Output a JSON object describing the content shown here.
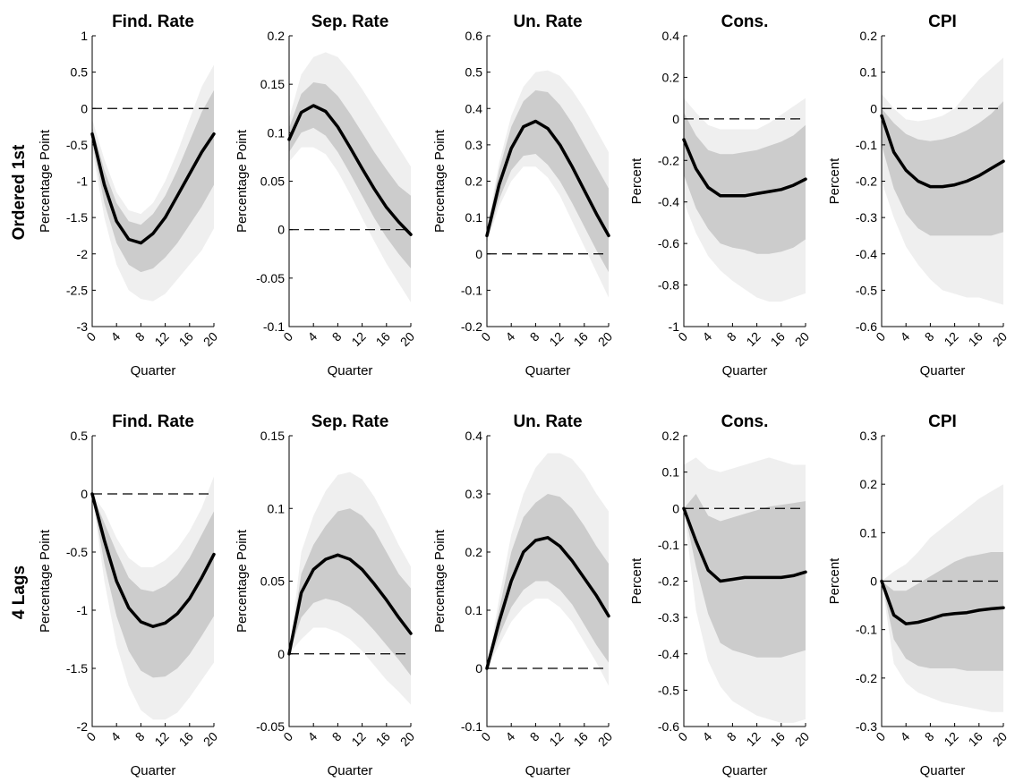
{
  "row_labels": [
    "Ordered 1st",
    "4 Lags"
  ],
  "chart_data": [
    {
      "type": "line",
      "row": 0,
      "col": 0,
      "title": "Find. Rate",
      "xlabel": "Quarter",
      "ylabel": "Percentage Point",
      "xlim": [
        0,
        20
      ],
      "ylim": [
        -3,
        1
      ],
      "yticks": [
        -3,
        -2.5,
        -2,
        -1.5,
        -1,
        -0.5,
        0,
        0.5,
        1
      ],
      "xticks": [
        0,
        4,
        8,
        12,
        16,
        20
      ],
      "zero_line": 0,
      "x": [
        0,
        2,
        4,
        6,
        8,
        10,
        12,
        14,
        16,
        18,
        20
      ],
      "median": [
        -0.35,
        -1.05,
        -1.55,
        -1.8,
        -1.85,
        -1.72,
        -1.5,
        -1.2,
        -0.9,
        -0.6,
        -0.35
      ],
      "band68_lower": [
        -0.45,
        -1.3,
        -1.85,
        -2.15,
        -2.25,
        -2.2,
        -2.05,
        -1.85,
        -1.6,
        -1.35,
        -1.05
      ],
      "band68_upper": [
        -0.25,
        -0.85,
        -1.3,
        -1.55,
        -1.6,
        -1.45,
        -1.2,
        -0.85,
        -0.45,
        -0.05,
        0.25
      ],
      "band90_lower": [
        -0.55,
        -1.5,
        -2.15,
        -2.5,
        -2.62,
        -2.65,
        -2.55,
        -2.35,
        -2.15,
        -1.95,
        -1.65
      ],
      "band90_upper": [
        -0.15,
        -0.7,
        -1.15,
        -1.4,
        -1.45,
        -1.3,
        -1.0,
        -0.6,
        -0.15,
        0.3,
        0.6
      ]
    },
    {
      "type": "line",
      "row": 0,
      "col": 1,
      "title": "Sep. Rate",
      "xlabel": "Quarter",
      "ylabel": "Percentage Point",
      "xlim": [
        0,
        20
      ],
      "ylim": [
        -0.1,
        0.2
      ],
      "yticks": [
        -0.1,
        -0.05,
        0,
        0.05,
        0.1,
        0.15,
        0.2
      ],
      "xticks": [
        0,
        4,
        8,
        12,
        16,
        20
      ],
      "zero_line": 0,
      "x": [
        0,
        2,
        4,
        6,
        8,
        10,
        12,
        14,
        16,
        18,
        20
      ],
      "median": [
        0.093,
        0.121,
        0.128,
        0.122,
        0.106,
        0.085,
        0.063,
        0.042,
        0.023,
        0.008,
        -0.005
      ],
      "band68_lower": [
        0.08,
        0.1,
        0.105,
        0.097,
        0.08,
        0.058,
        0.035,
        0.012,
        -0.008,
        -0.025,
        -0.04
      ],
      "band68_upper": [
        0.105,
        0.14,
        0.152,
        0.15,
        0.138,
        0.12,
        0.1,
        0.08,
        0.062,
        0.045,
        0.035
      ],
      "band90_lower": [
        0.07,
        0.085,
        0.085,
        0.078,
        0.06,
        0.037,
        0.012,
        -0.012,
        -0.035,
        -0.055,
        -0.075
      ],
      "band90_upper": [
        0.115,
        0.16,
        0.178,
        0.183,
        0.178,
        0.163,
        0.145,
        0.125,
        0.105,
        0.085,
        0.065
      ]
    },
    {
      "type": "line",
      "row": 0,
      "col": 2,
      "title": "Un. Rate",
      "xlabel": "Quarter",
      "ylabel": "Percentage Point",
      "xlim": [
        0,
        20
      ],
      "ylim": [
        -0.2,
        0.6
      ],
      "yticks": [
        -0.2,
        -0.1,
        0,
        0.1,
        0.2,
        0.3,
        0.4,
        0.5,
        0.6
      ],
      "xticks": [
        0,
        4,
        8,
        12,
        16,
        20
      ],
      "zero_line": 0,
      "x": [
        0,
        2,
        4,
        6,
        8,
        10,
        12,
        14,
        16,
        18,
        20
      ],
      "median": [
        0.05,
        0.19,
        0.29,
        0.35,
        0.365,
        0.345,
        0.3,
        0.24,
        0.175,
        0.11,
        0.05
      ],
      "band68_lower": [
        0.04,
        0.15,
        0.23,
        0.27,
        0.275,
        0.245,
        0.2,
        0.14,
        0.075,
        0.01,
        -0.05
      ],
      "band68_upper": [
        0.06,
        0.23,
        0.35,
        0.42,
        0.45,
        0.445,
        0.41,
        0.36,
        0.3,
        0.24,
        0.18
      ],
      "band90_lower": [
        0.03,
        0.13,
        0.2,
        0.24,
        0.24,
        0.21,
        0.16,
        0.09,
        0.02,
        -0.05,
        -0.12
      ],
      "band90_upper": [
        0.07,
        0.25,
        0.38,
        0.46,
        0.5,
        0.505,
        0.49,
        0.45,
        0.4,
        0.34,
        0.28
      ]
    },
    {
      "type": "line",
      "row": 0,
      "col": 3,
      "title": "Cons.",
      "xlabel": "Quarter",
      "ylabel": "Percent",
      "xlim": [
        0,
        20
      ],
      "ylim": [
        -1,
        0.4
      ],
      "yticks": [
        -1,
        -0.8,
        -0.6,
        -0.4,
        -0.2,
        0,
        0.2,
        0.4
      ],
      "xticks": [
        0,
        4,
        8,
        12,
        16,
        20
      ],
      "zero_line": 0,
      "x": [
        0,
        2,
        4,
        6,
        8,
        10,
        12,
        14,
        16,
        18,
        20
      ],
      "median": [
        -0.1,
        -0.24,
        -0.33,
        -0.37,
        -0.37,
        -0.37,
        -0.36,
        -0.35,
        -0.34,
        -0.32,
        -0.29
      ],
      "band68_lower": [
        -0.27,
        -0.43,
        -0.53,
        -0.6,
        -0.62,
        -0.63,
        -0.65,
        -0.65,
        -0.64,
        -0.62,
        -0.58
      ],
      "band68_upper": [
        0.03,
        -0.08,
        -0.15,
        -0.17,
        -0.17,
        -0.16,
        -0.15,
        -0.13,
        -0.11,
        -0.08,
        -0.03
      ],
      "band90_lower": [
        -0.4,
        -0.55,
        -0.66,
        -0.73,
        -0.78,
        -0.82,
        -0.86,
        -0.88,
        -0.88,
        -0.86,
        -0.84
      ],
      "band90_upper": [
        0.1,
        0.03,
        -0.03,
        -0.05,
        -0.05,
        -0.05,
        -0.05,
        -0.02,
        0.02,
        0.06,
        0.1
      ]
    },
    {
      "type": "line",
      "row": 0,
      "col": 4,
      "title": "CPI",
      "xlabel": "Quarter",
      "ylabel": "Percent",
      "xlim": [
        0,
        20
      ],
      "ylim": [
        -0.6,
        0.2
      ],
      "yticks": [
        -0.6,
        -0.5,
        -0.4,
        -0.3,
        -0.2,
        -0.1,
        0,
        0.1,
        0.2
      ],
      "xticks": [
        0,
        4,
        8,
        12,
        16,
        20
      ],
      "zero_line": 0,
      "x": [
        0,
        2,
        4,
        6,
        8,
        10,
        12,
        14,
        16,
        18,
        20
      ],
      "median": [
        -0.02,
        -0.12,
        -0.17,
        -0.2,
        -0.215,
        -0.215,
        -0.21,
        -0.2,
        -0.185,
        -0.165,
        -0.145
      ],
      "band68_lower": [
        -0.1,
        -0.22,
        -0.29,
        -0.33,
        -0.35,
        -0.35,
        -0.35,
        -0.35,
        -0.35,
        -0.35,
        -0.34
      ],
      "band68_upper": [
        0.0,
        -0.04,
        -0.07,
        -0.085,
        -0.09,
        -0.085,
        -0.075,
        -0.06,
        -0.04,
        -0.015,
        0.02
      ],
      "band90_lower": [
        -0.2,
        -0.3,
        -0.38,
        -0.43,
        -0.47,
        -0.5,
        -0.51,
        -0.52,
        -0.52,
        -0.53,
        -0.54
      ],
      "band90_upper": [
        0.04,
        0.0,
        -0.03,
        -0.035,
        -0.03,
        -0.02,
        0.0,
        0.04,
        0.08,
        0.11,
        0.14
      ]
    },
    {
      "type": "line",
      "row": 1,
      "col": 0,
      "title": "Find. Rate",
      "xlabel": "Quarter",
      "ylabel": "Percentage Point",
      "xlim": [
        0,
        20
      ],
      "ylim": [
        -2,
        0.5
      ],
      "yticks": [
        -2,
        -1.5,
        -1,
        -0.5,
        0,
        0.5
      ],
      "xticks": [
        0,
        4,
        8,
        12,
        16,
        20
      ],
      "zero_line": 0,
      "x": [
        0,
        2,
        4,
        6,
        8,
        10,
        12,
        14,
        16,
        18,
        20
      ],
      "median": [
        0.0,
        -0.4,
        -0.75,
        -0.98,
        -1.1,
        -1.14,
        -1.11,
        -1.03,
        -0.9,
        -0.72,
        -0.52
      ],
      "band68_lower": [
        0.0,
        -0.6,
        -1.05,
        -1.35,
        -1.52,
        -1.58,
        -1.57,
        -1.5,
        -1.38,
        -1.22,
        -1.05
      ],
      "band68_upper": [
        0.0,
        -0.25,
        -0.5,
        -0.72,
        -0.82,
        -0.84,
        -0.79,
        -0.7,
        -0.55,
        -0.35,
        -0.15
      ],
      "band90_lower": [
        0.0,
        -0.75,
        -1.3,
        -1.65,
        -1.86,
        -1.94,
        -1.94,
        -1.88,
        -1.75,
        -1.6,
        -1.45
      ],
      "band90_upper": [
        0.0,
        -0.15,
        -0.38,
        -0.55,
        -0.63,
        -0.63,
        -0.57,
        -0.47,
        -0.32,
        -0.12,
        0.15
      ]
    },
    {
      "type": "line",
      "row": 1,
      "col": 1,
      "title": "Sep. Rate",
      "xlabel": "Quarter",
      "ylabel": "Percentage Point",
      "xlim": [
        0,
        20
      ],
      "ylim": [
        -0.05,
        0.15
      ],
      "yticks": [
        -0.05,
        0,
        0.05,
        0.1,
        0.15
      ],
      "xticks": [
        0,
        4,
        8,
        12,
        16,
        20
      ],
      "zero_line": 0,
      "x": [
        0,
        2,
        4,
        6,
        8,
        10,
        12,
        14,
        16,
        18,
        20
      ],
      "median": [
        0.0,
        0.042,
        0.058,
        0.065,
        0.068,
        0.065,
        0.058,
        0.048,
        0.037,
        0.025,
        0.014
      ],
      "band68_lower": [
        0.0,
        0.025,
        0.035,
        0.038,
        0.036,
        0.032,
        0.025,
        0.016,
        0.006,
        -0.004,
        -0.015
      ],
      "band68_upper": [
        0.0,
        0.055,
        0.075,
        0.088,
        0.098,
        0.1,
        0.095,
        0.085,
        0.07,
        0.055,
        0.045
      ],
      "band90_lower": [
        0.0,
        0.01,
        0.018,
        0.018,
        0.015,
        0.01,
        0.002,
        -0.008,
        -0.018,
        -0.026,
        -0.035
      ],
      "band90_upper": [
        0.0,
        0.07,
        0.095,
        0.112,
        0.123,
        0.125,
        0.12,
        0.108,
        0.092,
        0.075,
        0.06
      ]
    },
    {
      "type": "line",
      "row": 1,
      "col": 2,
      "title": "Un. Rate",
      "xlabel": "Quarter",
      "ylabel": "Percentage Point",
      "xlim": [
        0,
        20
      ],
      "ylim": [
        -0.1,
        0.4
      ],
      "yticks": [
        -0.1,
        0,
        0.1,
        0.2,
        0.3,
        0.4
      ],
      "xticks": [
        0,
        4,
        8,
        12,
        16,
        20
      ],
      "zero_line": 0,
      "x": [
        0,
        2,
        4,
        6,
        8,
        10,
        12,
        14,
        16,
        18,
        20
      ],
      "median": [
        0.0,
        0.08,
        0.15,
        0.2,
        0.22,
        0.225,
        0.21,
        0.185,
        0.155,
        0.125,
        0.09
      ],
      "band68_lower": [
        0.0,
        0.055,
        0.105,
        0.135,
        0.15,
        0.15,
        0.135,
        0.11,
        0.075,
        0.04,
        0.01
      ],
      "band68_upper": [
        0.0,
        0.1,
        0.2,
        0.26,
        0.285,
        0.3,
        0.295,
        0.275,
        0.245,
        0.21,
        0.18
      ],
      "band90_lower": [
        0.0,
        0.04,
        0.08,
        0.105,
        0.12,
        0.12,
        0.105,
        0.08,
        0.045,
        0.01,
        -0.03
      ],
      "band90_upper": [
        0.0,
        0.12,
        0.23,
        0.3,
        0.345,
        0.37,
        0.37,
        0.36,
        0.335,
        0.3,
        0.27
      ]
    },
    {
      "type": "line",
      "row": 1,
      "col": 3,
      "title": "Cons.",
      "xlabel": "Quarter",
      "ylabel": "Percent",
      "xlim": [
        0,
        20
      ],
      "ylim": [
        -0.6,
        0.2
      ],
      "yticks": [
        -0.6,
        -0.5,
        -0.4,
        -0.3,
        -0.2,
        -0.1,
        0,
        0.1,
        0.2
      ],
      "xticks": [
        0,
        4,
        8,
        12,
        16,
        20
      ],
      "zero_line": 0,
      "x": [
        0,
        2,
        4,
        6,
        8,
        10,
        12,
        14,
        16,
        18,
        20
      ],
      "median": [
        0.0,
        -0.09,
        -0.17,
        -0.2,
        -0.195,
        -0.19,
        -0.19,
        -0.19,
        -0.19,
        -0.185,
        -0.175
      ],
      "band68_lower": [
        0.0,
        -0.16,
        -0.29,
        -0.37,
        -0.39,
        -0.4,
        -0.41,
        -0.41,
        -0.41,
        -0.4,
        -0.39
      ],
      "band68_upper": [
        0.0,
        0.04,
        -0.02,
        -0.035,
        -0.025,
        -0.015,
        -0.005,
        0.005,
        0.01,
        0.015,
        0.02
      ],
      "band90_lower": [
        0.0,
        -0.28,
        -0.42,
        -0.49,
        -0.53,
        -0.55,
        -0.57,
        -0.58,
        -0.59,
        -0.59,
        -0.58
      ],
      "band90_upper": [
        0.12,
        0.14,
        0.11,
        0.1,
        0.11,
        0.12,
        0.13,
        0.14,
        0.13,
        0.12,
        0.12
      ]
    },
    {
      "type": "line",
      "row": 1,
      "col": 4,
      "title": "CPI",
      "xlabel": "Quarter",
      "ylabel": "Percent",
      "xlim": [
        0,
        20
      ],
      "ylim": [
        -0.3,
        0.3
      ],
      "yticks": [
        -0.3,
        -0.2,
        -0.1,
        0,
        0.1,
        0.2,
        0.3
      ],
      "xticks": [
        0,
        4,
        8,
        12,
        16,
        20
      ],
      "zero_line": 0,
      "x": [
        0,
        2,
        4,
        6,
        8,
        10,
        12,
        14,
        16,
        18,
        20
      ],
      "median": [
        0.0,
        -0.07,
        -0.088,
        -0.085,
        -0.078,
        -0.07,
        -0.067,
        -0.065,
        -0.06,
        -0.057,
        -0.055
      ],
      "band68_lower": [
        0.0,
        -0.12,
        -0.16,
        -0.175,
        -0.18,
        -0.18,
        -0.18,
        -0.185,
        -0.185,
        -0.185,
        -0.185
      ],
      "band68_upper": [
        0.0,
        -0.02,
        -0.02,
        -0.005,
        0.01,
        0.025,
        0.04,
        0.05,
        0.055,
        0.06,
        0.06
      ],
      "band90_lower": [
        0.0,
        -0.17,
        -0.21,
        -0.23,
        -0.24,
        -0.25,
        -0.255,
        -0.26,
        -0.265,
        -0.27,
        -0.27
      ],
      "band90_upper": [
        0.0,
        0.02,
        0.035,
        0.06,
        0.09,
        0.11,
        0.13,
        0.15,
        0.17,
        0.185,
        0.2
      ]
    }
  ]
}
